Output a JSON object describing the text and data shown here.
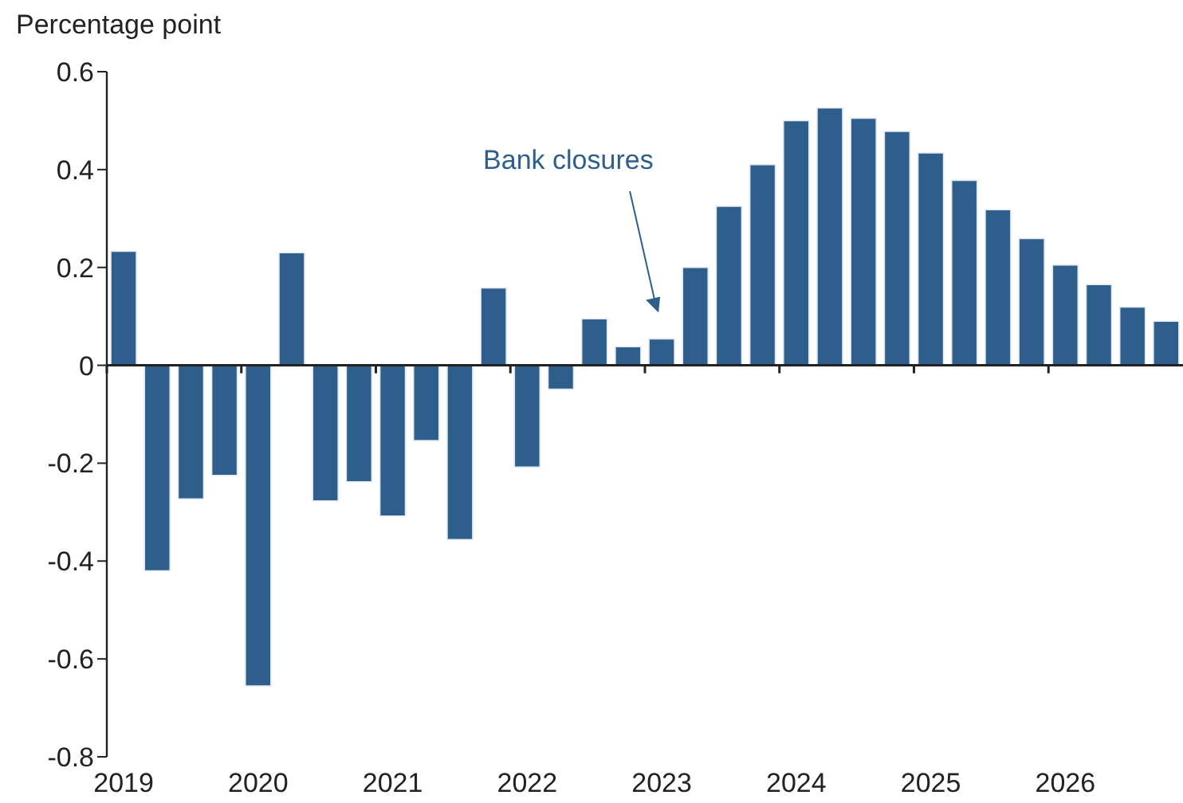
{
  "chart_data": {
    "type": "bar",
    "ylabel": "Percentage point",
    "categories": [
      "2019",
      null,
      null,
      null,
      "2020",
      null,
      null,
      null,
      "2021",
      null,
      null,
      null,
      "2022",
      null,
      null,
      null,
      "2023",
      null,
      null,
      null,
      "2024",
      null,
      null,
      null,
      "2025",
      null,
      null,
      null,
      "2026",
      null,
      null,
      null
    ],
    "values": [
      0.233,
      -0.42,
      -0.273,
      -0.225,
      -0.655,
      0.23,
      -0.277,
      -0.238,
      -0.308,
      -0.154,
      -0.356,
      0.158,
      -0.208,
      -0.049,
      0.095,
      0.038,
      0.054,
      0.2,
      0.325,
      0.41,
      0.5,
      0.526,
      0.505,
      0.478,
      0.434,
      0.378,
      0.318,
      0.259,
      0.205,
      0.165,
      0.119,
      0.09
    ],
    "color": "#2e5f8c",
    "ylim": [
      -0.8,
      0.6
    ],
    "yticks": [
      -0.8,
      -0.6,
      -0.4,
      -0.2,
      0,
      0.2,
      0.4,
      0.6
    ],
    "annotations": [
      "Bank closures"
    ]
  }
}
